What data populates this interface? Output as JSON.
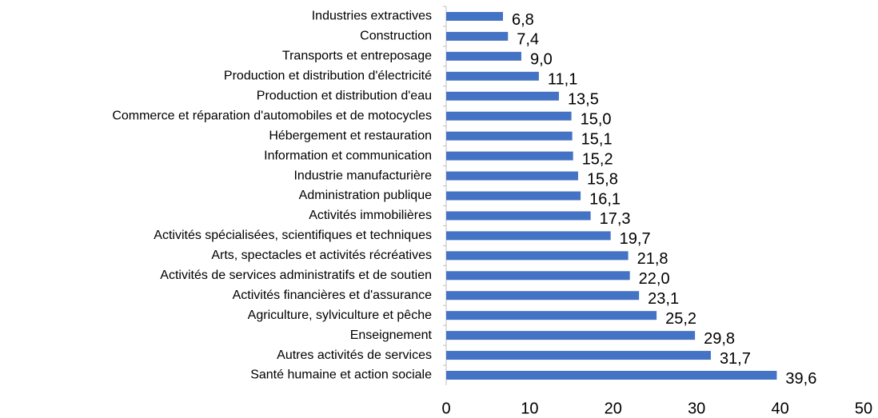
{
  "chart_data": {
    "type": "bar",
    "orientation": "horizontal",
    "categories": [
      "Industries extractives",
      "Construction",
      "Transports et entreposage",
      "Production et distribution d'électricité",
      "Production et distribution d'eau",
      "Commerce et réparation d'automobiles et de motocycles",
      "Hébergement et restauration",
      "Information et communication",
      "Industrie manufacturière",
      "Administration publique",
      "Activités immobilières",
      "Activités spécialisées, scientifiques et techniques",
      "Arts, spectacles et activités récréatives",
      "Activités de services administratifs et de soutien",
      "Activités financières et d'assurance",
      "Agriculture, sylviculture et pêche",
      "Enseignement",
      "Autres activités de services",
      "Santé humaine et action sociale"
    ],
    "values": [
      6.8,
      7.4,
      9.0,
      11.1,
      13.5,
      15.0,
      15.1,
      15.2,
      15.8,
      16.1,
      17.3,
      19.7,
      21.8,
      22.0,
      23.1,
      25.2,
      29.8,
      31.7,
      39.6
    ],
    "value_labels": [
      "6,8",
      "7,4",
      "9,0",
      "11,1",
      "13,5",
      "15,0",
      "15,1",
      "15,2",
      "15,8",
      "16,1",
      "17,3",
      "19,7",
      "21,8",
      "22,0",
      "23,1",
      "25,2",
      "29,8",
      "31,7",
      "39,6"
    ],
    "color": "#4472c4",
    "xlim": [
      0,
      50
    ],
    "xticks": [
      0,
      10,
      20,
      30,
      40,
      50
    ],
    "grid": false
  }
}
